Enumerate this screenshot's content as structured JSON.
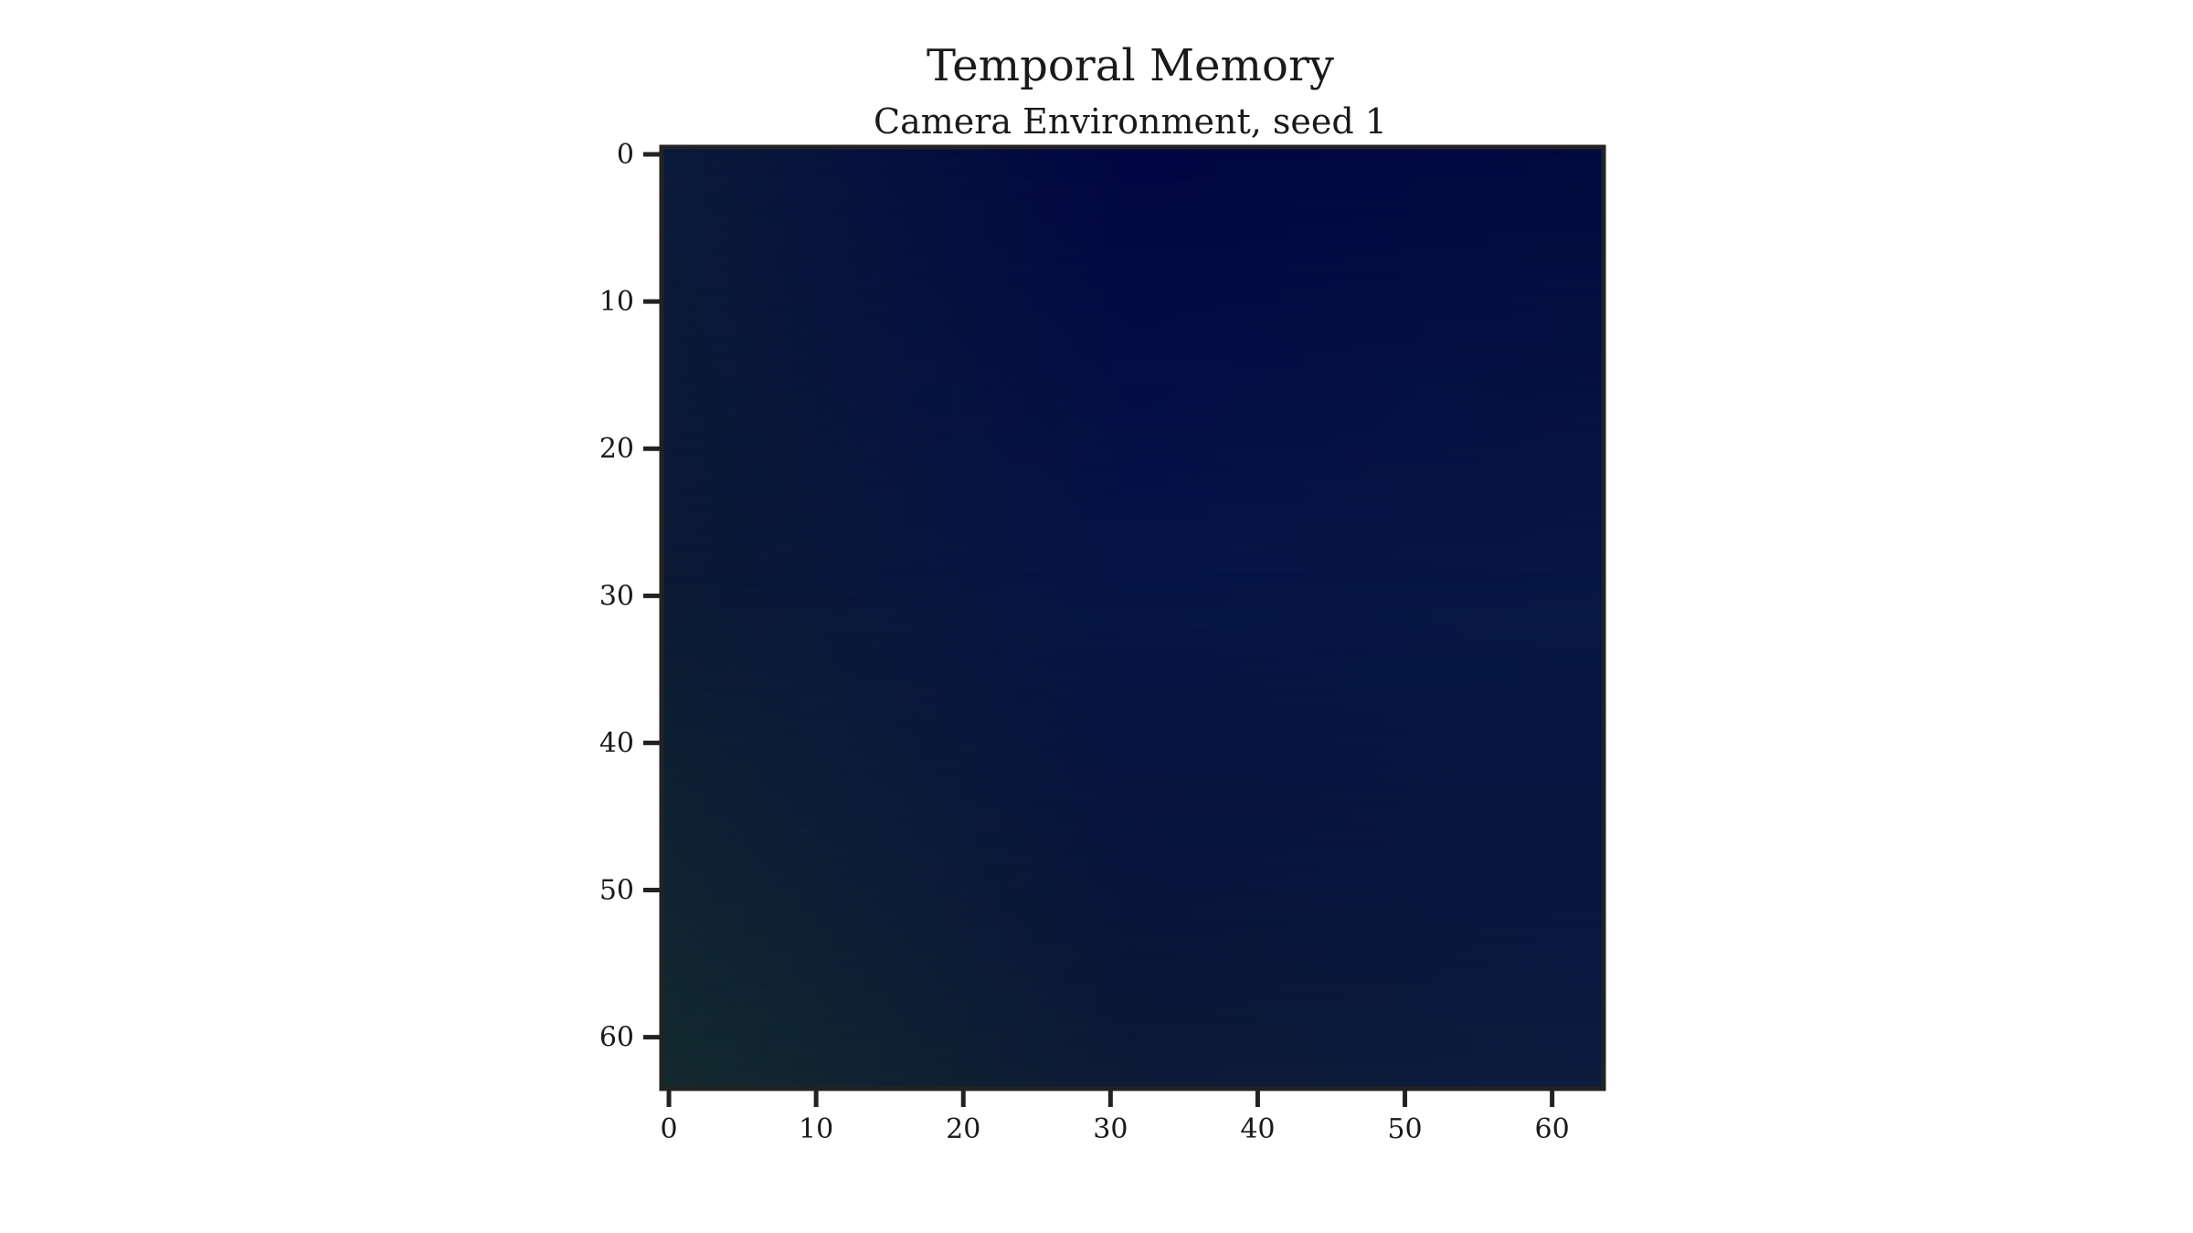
{
  "chart_data": {
    "type": "heatmap",
    "title": "Temporal Memory",
    "subtitle": "Camera Environment, seed 1",
    "xlabel": "",
    "ylabel": "",
    "xlim": [
      -0.5,
      63.5
    ],
    "ylim": [
      63.5,
      -0.5
    ],
    "y_inverted": true,
    "grid": false,
    "legend": "none",
    "image_size": [
      64,
      64
    ],
    "x_ticks": [
      0,
      10,
      20,
      30,
      40,
      50,
      60
    ],
    "y_ticks": [
      0,
      10,
      20,
      30,
      40,
      50,
      60
    ],
    "colors": {
      "axis": "#222222",
      "top_left": "#0b1a3a",
      "top_center": "#020642",
      "top_right": "#030a3f",
      "mid_left": "#0b1934",
      "mid_center": "#061547",
      "mid_right": "#081845",
      "bottom_left": "#132a2e",
      "bottom_center": "#0c1a35",
      "bottom_right": "#0b1c3e"
    }
  }
}
